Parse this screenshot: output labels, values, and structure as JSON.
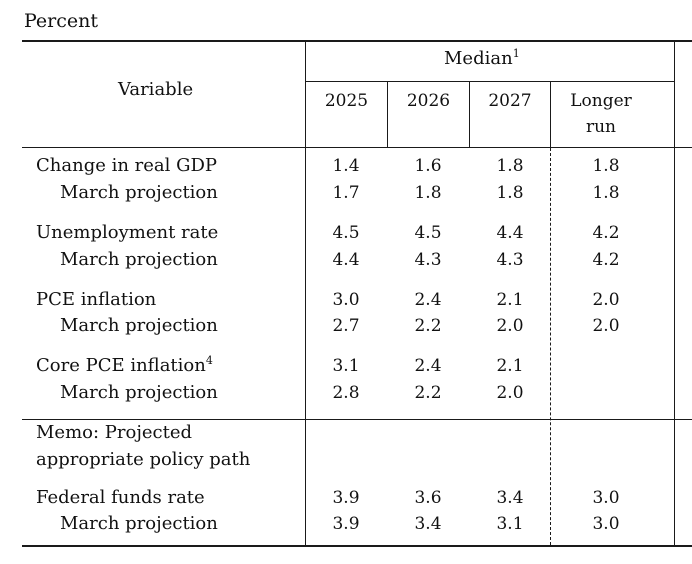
{
  "caption": "Percent",
  "header": {
    "variable_label": "Variable",
    "median_label": "Median",
    "median_note": "1",
    "years": [
      "2025",
      "2026",
      "2027"
    ],
    "longer_run_line1": "Longer",
    "longer_run_line2": "run"
  },
  "rows": [
    {
      "label": "Change in real GDP",
      "note": "",
      "values": [
        "1.4",
        "1.6",
        "1.8",
        "1.8"
      ]
    },
    {
      "label": "March projection",
      "note": "",
      "values": [
        "1.7",
        "1.8",
        "1.8",
        "1.8"
      ]
    },
    {
      "label": "Unemployment rate",
      "note": "",
      "values": [
        "4.5",
        "4.5",
        "4.4",
        "4.2"
      ]
    },
    {
      "label": "March projection",
      "note": "",
      "values": [
        "4.4",
        "4.3",
        "4.3",
        "4.2"
      ]
    },
    {
      "label": "PCE inflation",
      "note": "",
      "values": [
        "3.0",
        "2.4",
        "2.1",
        "2.0"
      ]
    },
    {
      "label": "March projection",
      "note": "",
      "values": [
        "2.7",
        "2.2",
        "2.0",
        "2.0"
      ]
    },
    {
      "label": "Core PCE inflation",
      "note": "4",
      "values": [
        "3.1",
        "2.4",
        "2.1",
        ""
      ]
    },
    {
      "label": "March projection",
      "note": "",
      "values": [
        "2.8",
        "2.2",
        "2.0",
        ""
      ]
    }
  ],
  "memo": {
    "line1": "Memo: Projected",
    "line2": "appropriate policy path"
  },
  "policy_rows": [
    {
      "label": "Federal funds rate",
      "values": [
        "3.9",
        "3.6",
        "3.4",
        "3.0"
      ]
    },
    {
      "label": "March projection",
      "values": [
        "3.9",
        "3.4",
        "3.1",
        "3.0"
      ]
    }
  ]
}
